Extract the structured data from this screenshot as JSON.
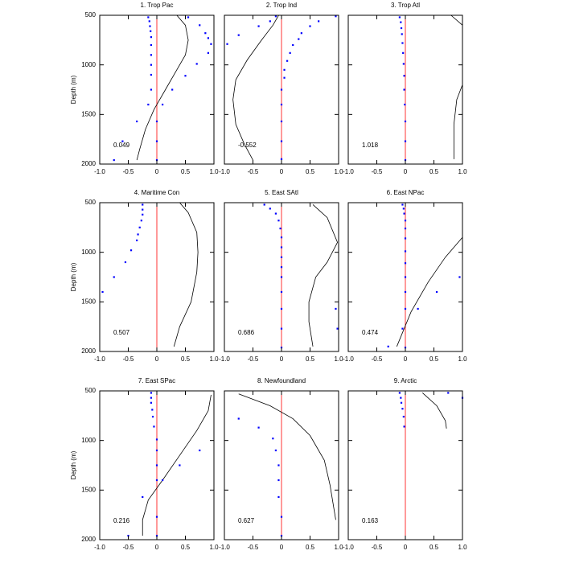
{
  "chart_data": [
    {
      "type": "scatter",
      "title": "1. Trop Pac",
      "ylabel": "Depth (m)",
      "annotation": "0.049",
      "xlim": [
        -1,
        1
      ],
      "ylim": [
        500,
        2000
      ],
      "y_inverted": true,
      "xticks": [
        {
          "value": -1,
          "label": "-1.0"
        },
        -0.5,
        0,
        0.5,
        {
          "value": 1,
          "label": "1.0"
        }
      ],
      "yticks": [
        500,
        1000,
        1500,
        2000
      ],
      "points": {
        "color": "#0000ff",
        "x": [
          -0.15,
          -0.13,
          -0.12,
          -0.11,
          -0.1,
          -0.1,
          -0.1,
          -0.1,
          -0.1,
          -0.1,
          -0.15,
          -0.35,
          -0.6,
          -0.75,
          0.55,
          0.75,
          0.85,
          0.9,
          0.95,
          0.9,
          0.7,
          0.5,
          0.27,
          0.1,
          0,
          0,
          0
        ],
        "y": [
          520,
          560,
          610,
          660,
          720,
          800,
          900,
          1000,
          1100,
          1250,
          1400,
          1570,
          1770,
          1960,
          520,
          600,
          680,
          730,
          790,
          880,
          990,
          1110,
          1250,
          1400,
          1570,
          1770,
          1960
        ]
      },
      "line": {
        "color": "#000000",
        "x": [
          0.35,
          0.5,
          0.55,
          0.5,
          0.35,
          0.15,
          -0.05,
          -0.2,
          -0.3,
          -0.35
        ],
        "y": [
          500,
          600,
          750,
          900,
          1050,
          1250,
          1450,
          1650,
          1850,
          1960
        ]
      },
      "ref_line": {
        "x": 0,
        "color": "#ff0000"
      }
    },
    {
      "type": "scatter",
      "title": "2. Trop Ind",
      "annotation": "-0.552",
      "xlim": [
        -1,
        1
      ],
      "ylim": [
        500,
        2000
      ],
      "y_inverted": true,
      "xticks": [
        {
          "value": -1,
          "label": "-1.0"
        },
        -0.5,
        0,
        0.5,
        {
          "value": 1,
          "label": "1.0"
        }
      ],
      "yticks": [
        500,
        1000,
        1500,
        2000
      ],
      "points": {
        "color": "#0000ff",
        "x": [
          0.95,
          0.65,
          0.5,
          0.35,
          0.3,
          0.2,
          0.15,
          0.1,
          0.05,
          0.05,
          0,
          0,
          0,
          0,
          0,
          -0.1,
          -0.2,
          -0.4,
          -0.75,
          -0.95
        ],
        "y": [
          510,
          560,
          610,
          680,
          740,
          800,
          880,
          960,
          1050,
          1130,
          1250,
          1400,
          1570,
          1770,
          1950,
          510,
          560,
          610,
          700,
          790
        ]
      },
      "line": {
        "color": "#000000",
        "x": [
          -0.05,
          -0.15,
          -0.35,
          -0.6,
          -0.8,
          -0.85,
          -0.8,
          -0.65,
          -0.5
        ],
        "y": [
          500,
          600,
          750,
          950,
          1150,
          1350,
          1600,
          1800,
          1960
        ]
      },
      "ref_line": {
        "x": 0,
        "color": "#ff0000"
      }
    },
    {
      "type": "scatter",
      "title": "3. Trop Atl",
      "annotation": "1.018",
      "xlim": [
        -1,
        1
      ],
      "ylim": [
        500,
        2000
      ],
      "y_inverted": true,
      "xticks": [
        {
          "value": -1,
          "label": "-1.0"
        },
        -0.5,
        0,
        0.5,
        {
          "value": 1,
          "label": "1.0"
        }
      ],
      "yticks": [
        500,
        1000,
        1500,
        2000
      ],
      "points": {
        "color": "#0000ff",
        "x": [
          -0.1,
          -0.08,
          -0.07,
          -0.06,
          -0.05,
          -0.04,
          -0.03,
          -0.02,
          -0.02,
          -0.01,
          0,
          0,
          0
        ],
        "y": [
          520,
          570,
          630,
          690,
          780,
          880,
          990,
          1110,
          1250,
          1400,
          1570,
          1770,
          1960
        ]
      },
      "line": {
        "color": "#000000",
        "x": [
          0.8,
          1.0,
          null,
          1.0,
          0.9,
          0.85,
          0.85
        ],
        "y": [
          500,
          600,
          null,
          1200,
          1350,
          1600,
          1950
        ]
      },
      "ref_line": {
        "x": 0,
        "color": "#ff0000"
      }
    },
    {
      "type": "scatter",
      "title": "4. Maritime Con",
      "ylabel": "Depth (m)",
      "annotation": "0.507",
      "xlim": [
        -1,
        1
      ],
      "ylim": [
        500,
        2000
      ],
      "y_inverted": true,
      "xticks": [
        {
          "value": -1,
          "label": "-1.0"
        },
        -0.5,
        0,
        0.5,
        {
          "value": 1,
          "label": "1.0"
        }
      ],
      "yticks": [
        500,
        1000,
        1500,
        2000
      ],
      "points": {
        "color": "#0000ff",
        "x": [
          -0.25,
          -0.25,
          -0.25,
          -0.27,
          -0.3,
          -0.33,
          -0.35,
          -0.45,
          -0.55,
          -0.75,
          -0.95
        ],
        "y": [
          520,
          570,
          620,
          680,
          750,
          820,
          880,
          980,
          1100,
          1250,
          1400
        ]
      },
      "line": {
        "color": "#000000",
        "x": [
          0.4,
          0.55,
          0.7,
          0.72,
          0.7,
          0.6,
          0.4,
          0.3
        ],
        "y": [
          500,
          600,
          800,
          1000,
          1200,
          1500,
          1750,
          1950
        ]
      },
      "ref_line": {
        "x": 0,
        "color": "#ff0000"
      }
    },
    {
      "type": "scatter",
      "title": "5. East SAtl",
      "annotation": "0.686",
      "xlim": [
        -1,
        1
      ],
      "ylim": [
        500,
        2000
      ],
      "y_inverted": true,
      "xticks": [
        {
          "value": -1,
          "label": "-1.0"
        },
        -0.5,
        0,
        0.5,
        {
          "value": 1,
          "label": "1.0"
        }
      ],
      "yticks": [
        500,
        1000,
        1500,
        2000
      ],
      "points": {
        "color": "#0000ff",
        "x": [
          -0.3,
          -0.2,
          -0.1,
          -0.05,
          -0.02,
          0,
          0,
          0,
          0,
          0,
          0,
          0,
          0,
          0,
          0.95,
          0.98
        ],
        "y": [
          520,
          560,
          610,
          680,
          760,
          850,
          950,
          1050,
          1150,
          1250,
          1400,
          1570,
          1770,
          1960,
          1570,
          1770
        ]
      },
      "line": {
        "color": "#000000",
        "x": [
          0.55,
          0.8,
          0.98,
          0.8,
          0.6,
          0.48,
          0.48,
          0.55
        ],
        "y": [
          520,
          650,
          900,
          1100,
          1250,
          1500,
          1700,
          1950
        ]
      },
      "ref_line": {
        "x": 0,
        "color": "#ff0000"
      }
    },
    {
      "type": "scatter",
      "title": "6. East NPac",
      "annotation": "0.474",
      "xlim": [
        -1,
        1
      ],
      "ylim": [
        500,
        2000
      ],
      "y_inverted": true,
      "xticks": [
        {
          "value": -1,
          "label": "-1.0"
        },
        -0.5,
        0,
        0.5,
        {
          "value": 1,
          "label": "1.0"
        }
      ],
      "yticks": [
        500,
        1000,
        1500,
        2000
      ],
      "points": {
        "color": "#0000ff",
        "x": [
          -0.05,
          -0.03,
          -0.02,
          0,
          0,
          0,
          0,
          0,
          0,
          0,
          0,
          0.95,
          0.55,
          0.22,
          -0.05,
          -0.3,
          0
        ],
        "y": [
          520,
          560,
          610,
          680,
          760,
          860,
          990,
          1110,
          1250,
          1400,
          1570,
          1250,
          1400,
          1570,
          1770,
          1950,
          1960
        ]
      },
      "line": {
        "color": "#000000",
        "x": [
          1.0,
          0.7,
          0.4,
          0.1,
          -0.15
        ],
        "y": [
          850,
          1050,
          1300,
          1600,
          1950
        ]
      },
      "ref_line": {
        "x": 0,
        "color": "#ff0000"
      }
    },
    {
      "type": "scatter",
      "title": "7. East SPac",
      "ylabel": "Depth (m)",
      "annotation": "0.216",
      "xlim": [
        -1,
        1
      ],
      "ylim": [
        500,
        2000
      ],
      "y_inverted": true,
      "xticks": [
        {
          "value": -1,
          "label": "-1.0"
        },
        -0.5,
        0,
        0.5,
        {
          "value": 1,
          "label": "1.0"
        }
      ],
      "yticks": [
        500,
        1000,
        1500,
        2000
      ],
      "points": {
        "color": "#0000ff",
        "x": [
          -0.1,
          -0.1,
          -0.1,
          -0.08,
          -0.07,
          -0.05,
          0,
          0,
          0,
          0,
          0.75,
          0.4,
          0.1,
          -0.25,
          0,
          -0.5,
          0
        ],
        "y": [
          520,
          570,
          620,
          690,
          760,
          860,
          990,
          1100,
          1250,
          1400,
          1100,
          1250,
          1400,
          1570,
          1770,
          1960,
          1960
        ]
      },
      "line": {
        "color": "#000000",
        "x": [
          0.95,
          0.9,
          0.7,
          0.4,
          0.1,
          -0.15,
          -0.25,
          -0.25
        ],
        "y": [
          540,
          700,
          900,
          1150,
          1400,
          1600,
          1800,
          1960
        ]
      },
      "ref_line": {
        "x": 0,
        "color": "#ff0000"
      }
    },
    {
      "type": "scatter",
      "title": "8. Newfoundland",
      "annotation": "0.627",
      "xlim": [
        -1,
        1
      ],
      "ylim": [
        500,
        2000
      ],
      "y_inverted": true,
      "xticks": [
        {
          "value": -1,
          "label": "-1.0"
        },
        -0.5,
        0,
        0.5,
        {
          "value": 1,
          "label": "1.0"
        }
      ],
      "yticks": [
        500,
        1000,
        1500,
        2000
      ],
      "points": {
        "color": "#0000ff",
        "x": [
          -0.75,
          -0.4,
          -0.15,
          -0.1,
          -0.05,
          -0.05,
          -0.05,
          0,
          0
        ],
        "y": [
          780,
          870,
          980,
          1100,
          1250,
          1400,
          1570,
          1770,
          1960
        ]
      },
      "line": {
        "color": "#000000",
        "x": [
          -0.75,
          -0.2,
          0.2,
          0.5,
          0.75,
          0.85,
          0.95
        ],
        "y": [
          530,
          650,
          780,
          950,
          1200,
          1450,
          1800
        ]
      },
      "ref_line": {
        "x": 0,
        "color": "#ff0000"
      }
    },
    {
      "type": "scatter",
      "title": "9. Arctic",
      "annotation": "0.163",
      "xlim": [
        -1,
        1
      ],
      "ylim": [
        500,
        2000
      ],
      "y_inverted": true,
      "xticks": [
        {
          "value": -1,
          "label": "-1.0"
        },
        -0.5,
        0,
        0.5,
        {
          "value": 1,
          "label": "1.0"
        }
      ],
      "yticks": [
        500,
        1000,
        1500,
        2000
      ],
      "points": {
        "color": "#0000ff",
        "x": [
          -0.1,
          -0.08,
          -0.07,
          -0.05,
          -0.03,
          -0.02,
          0.75,
          1.0
        ],
        "y": [
          520,
          570,
          620,
          680,
          760,
          860,
          520,
          570
        ]
      },
      "line": {
        "color": "#000000",
        "x": [
          0.3,
          0.55,
          0.7,
          0.72
        ],
        "y": [
          520,
          650,
          800,
          880
        ]
      },
      "ref_line": {
        "x": 0,
        "color": "#ff0000"
      }
    }
  ]
}
